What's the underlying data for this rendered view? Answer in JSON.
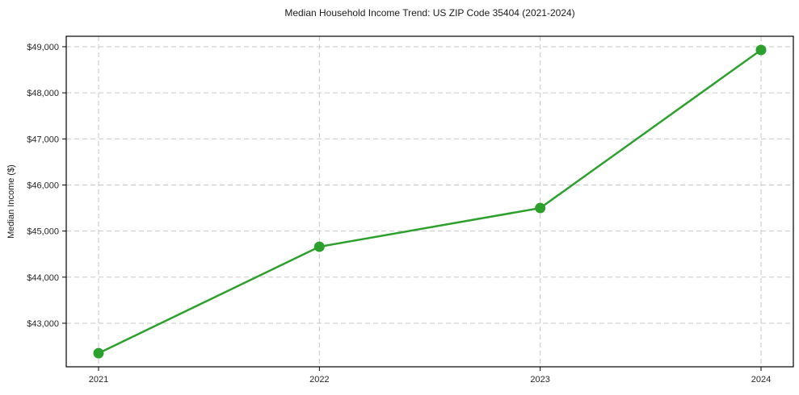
{
  "chart_data": {
    "type": "line",
    "title": "Median Household Income Trend: US ZIP Code 35404 (2021-2024)",
    "xlabel": "",
    "ylabel": "Median Income ($)",
    "categories": [
      "2021",
      "2022",
      "2023",
      "2024"
    ],
    "series": [
      {
        "name": "Median Household Income",
        "values": [
          42350,
          44660,
          45500,
          48930
        ],
        "color": "#2ca02c",
        "marker": "circle",
        "marker_radius": 6.5,
        "line_width": 2.5
      }
    ],
    "yticks": [
      43000,
      44000,
      45000,
      46000,
      47000,
      48000,
      49000
    ],
    "ytick_labels": [
      "$43,000",
      "$44,000",
      "$45,000",
      "$46,000",
      "$47,000",
      "$48,000",
      "$49,000"
    ],
    "ylim": [
      42055,
      49227
    ],
    "grid": true,
    "grid_style": "dashed",
    "grid_color": "#c7c7c7",
    "frame_color": "#000000",
    "background_color": "#ffffff",
    "legend_position": "none"
  }
}
